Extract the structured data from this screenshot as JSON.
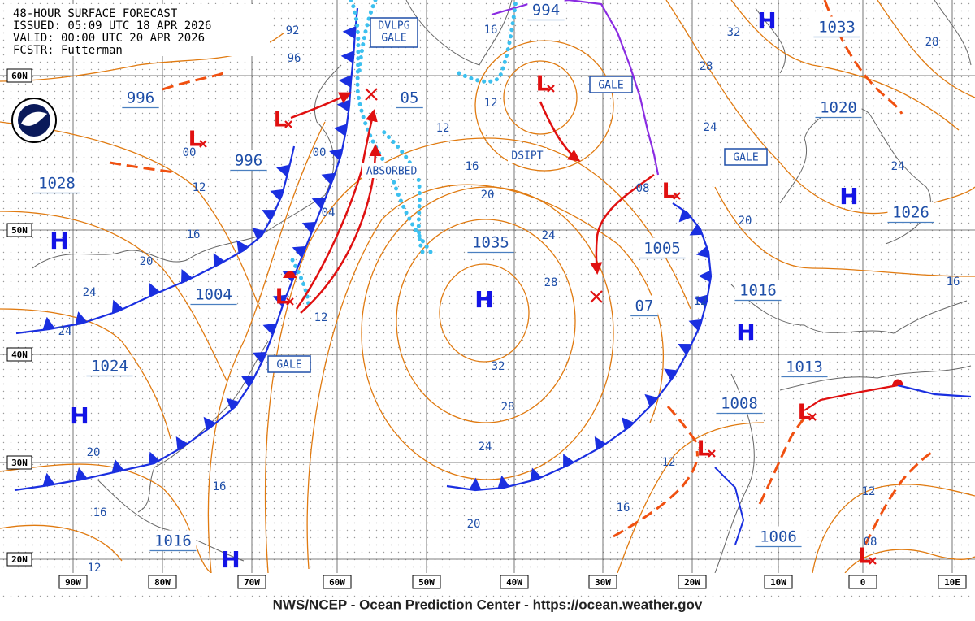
{
  "header": {
    "lines": [
      "48-HOUR SURFACE FORECAST",
      "ISSUED: 05:09 UTC 18 APR 2026",
      "VALID:  00:00 UTC 20 APR 2026",
      "FCSTR:  Futterman"
    ]
  },
  "footer": "NWS/NCEP - Ocean Prediction Center - https://ocean.weather.gov",
  "lat_labels": [
    "60N",
    "50N",
    "40N",
    "30N",
    "20N"
  ],
  "lon_labels": [
    "90W",
    "80W",
    "70W",
    "60W",
    "50W",
    "40W",
    "30W",
    "20W",
    "10W",
    "0",
    "10E"
  ],
  "pressure_boxes": [
    "996",
    "996",
    "1028",
    "1004",
    "1024",
    "1016",
    "1035",
    "1005",
    "1016",
    "1013",
    "1008",
    "1006",
    "1020",
    "1026",
    "1033"
  ],
  "center_numbers": [
    "05",
    "07",
    "994"
  ],
  "isobar_values": [
    "92",
    "96",
    "00",
    "00",
    "12",
    "16",
    "20",
    "24",
    "24",
    "04",
    "12",
    "12",
    "16",
    "20",
    "24",
    "28",
    "32",
    "28",
    "24",
    "20",
    "16",
    "12",
    "32",
    "28",
    "24",
    "20",
    "24",
    "28",
    "16",
    "12",
    "08",
    "12",
    "16",
    "12",
    "08",
    "20",
    "16",
    "16",
    "12"
  ],
  "highs": [
    "H",
    "H",
    "H",
    "H",
    "H",
    "H",
    "H"
  ],
  "lows": [
    "L",
    "L",
    "L",
    "L",
    "L",
    "L",
    "L",
    "L"
  ],
  "gale_labels": [
    "GALE",
    "GALE",
    "GALE"
  ],
  "dvlpg_gale": [
    "DVLPG",
    "GALE"
  ],
  "annotations": [
    "ABSORBED",
    "DSIPT"
  ]
}
